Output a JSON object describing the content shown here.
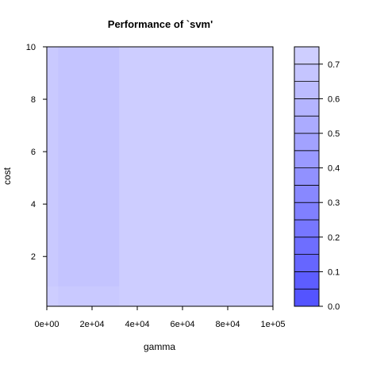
{
  "chart_data": {
    "type": "heatmap",
    "title": "Performance of `svm'",
    "xlabel": "gamma",
    "ylabel": "cost",
    "xlim": [
      0,
      100000
    ],
    "ylim": [
      0.1,
      10
    ],
    "x_ticks": [
      0,
      20000,
      40000,
      60000,
      80000,
      100000
    ],
    "x_tick_labels": [
      "0e+00",
      "2e+04",
      "4e+04",
      "6e+04",
      "8e+04",
      "1e+05"
    ],
    "y_ticks": [
      2,
      4,
      6,
      8,
      10
    ],
    "y_tick_labels": [
      "2",
      "4",
      "6",
      "8",
      "10"
    ],
    "colorbar": {
      "range": [
        0,
        0.75
      ],
      "ticks": [
        0,
        0.1,
        0.2,
        0.3,
        0.4,
        0.5,
        0.6,
        0.7
      ],
      "tick_labels": [
        "0.0",
        "0.1",
        "0.2",
        "0.3",
        "0.4",
        "0.5",
        "0.6",
        "0.7"
      ],
      "levels": [
        0,
        0.05,
        0.1,
        0.15,
        0.2,
        0.25,
        0.3,
        0.35,
        0.4,
        0.45,
        0.5,
        0.55,
        0.6,
        0.65,
        0.7,
        0.75
      ],
      "low_color": "#5050ff",
      "high_color": "#d2d2ff"
    },
    "background_level": 0.72,
    "regions": [
      {
        "x": [
          0,
          5000
        ],
        "y": [
          0.1,
          10
        ],
        "value": 0.7
      },
      {
        "x": [
          5000,
          32000
        ],
        "y": [
          0.85,
          10
        ],
        "value": 0.67
      },
      {
        "x": [
          5000,
          32000
        ],
        "y": [
          0.1,
          0.85
        ],
        "value": 0.7
      },
      {
        "x": [
          0,
          5000
        ],
        "y": [
          0.1,
          0.85
        ],
        "value": 0.72
      }
    ]
  }
}
